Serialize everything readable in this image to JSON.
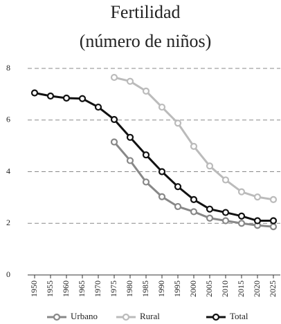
{
  "chart_data": {
    "type": "line",
    "title": [
      "Fertilidad",
      "(número de niños)"
    ],
    "x": [
      1950,
      1955,
      1960,
      1965,
      1970,
      1975,
      1980,
      1985,
      1990,
      1995,
      2000,
      2005,
      2010,
      2015,
      2020,
      2025
    ],
    "series": [
      {
        "name": "Urbano",
        "color": "#888888",
        "values": [
          null,
          null,
          null,
          null,
          null,
          5.15,
          4.43,
          3.6,
          3.03,
          2.65,
          2.45,
          2.2,
          2.1,
          2.0,
          1.92,
          1.87
        ]
      },
      {
        "name": "Rural",
        "color": "#bbbbbb",
        "values": [
          null,
          null,
          null,
          null,
          null,
          7.65,
          7.5,
          7.12,
          6.5,
          5.88,
          4.98,
          4.22,
          3.68,
          3.22,
          3.02,
          2.92
        ]
      },
      {
        "name": "Total",
        "color": "#111111",
        "values": [
          7.05,
          6.93,
          6.85,
          6.83,
          6.5,
          6.02,
          5.33,
          4.65,
          4.0,
          3.42,
          2.92,
          2.55,
          2.42,
          2.28,
          2.1,
          2.1
        ]
      }
    ],
    "xlim": [
      1950,
      2025
    ],
    "xticks": [
      1950,
      1955,
      1960,
      1965,
      1970,
      1975,
      1980,
      1985,
      1990,
      1995,
      2000,
      2005,
      2010,
      2015,
      2020,
      2025
    ],
    "ylim": [
      0,
      8
    ],
    "yticks": [
      0,
      2,
      4,
      6,
      8
    ],
    "grid": true,
    "legend": "bottom"
  }
}
